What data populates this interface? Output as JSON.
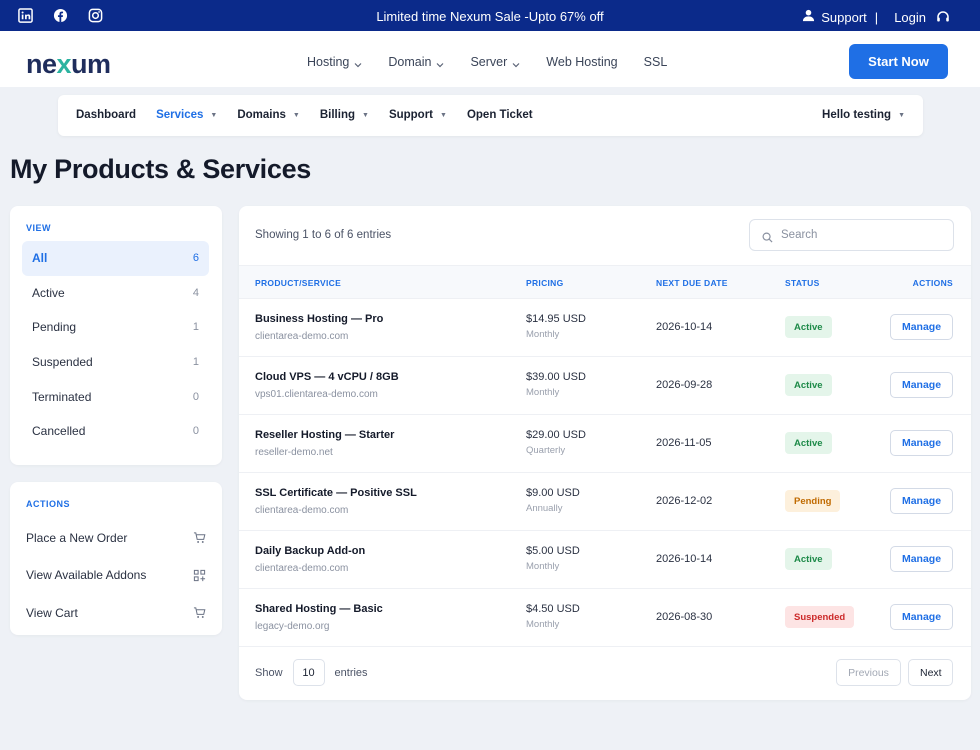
{
  "topbar": {
    "social": [
      "linkedin-icon",
      "facebook-icon",
      "instagram-icon"
    ],
    "promo": "Limited time Nexum Sale -Upto 67% off",
    "support": "Support",
    "separator": "|",
    "login": "Login"
  },
  "header": {
    "logo_pre": "ne",
    "logo_x": "x",
    "logo_post": "um",
    "nav": [
      {
        "label": "Hosting",
        "dropdown": true
      },
      {
        "label": "Domain",
        "dropdown": true
      },
      {
        "label": "Server",
        "dropdown": true
      },
      {
        "label": "Web Hosting",
        "dropdown": false
      },
      {
        "label": "SSL",
        "dropdown": false
      }
    ],
    "cta": "Start Now"
  },
  "subnav": {
    "items": [
      {
        "label": "Dashboard",
        "caret": false,
        "active": false
      },
      {
        "label": "Services",
        "caret": true,
        "active": true
      },
      {
        "label": "Domains",
        "caret": true,
        "active": false
      },
      {
        "label": "Billing",
        "caret": true,
        "active": false
      },
      {
        "label": "Support",
        "caret": true,
        "active": false
      },
      {
        "label": "Open Ticket",
        "caret": false,
        "active": false
      }
    ],
    "user": "Hello testing",
    "caret_glyph": "▼"
  },
  "page": {
    "title": "My Products & Services"
  },
  "sidebar": {
    "view_heading": "VIEW",
    "views": [
      {
        "label": "All",
        "count": "6",
        "active": true
      },
      {
        "label": "Active",
        "count": "4",
        "active": false
      },
      {
        "label": "Pending",
        "count": "1",
        "active": false
      },
      {
        "label": "Suspended",
        "count": "1",
        "active": false
      },
      {
        "label": "Terminated",
        "count": "0",
        "active": false
      },
      {
        "label": "Cancelled",
        "count": "0",
        "active": false
      }
    ],
    "actions_heading": "ACTIONS",
    "actions": [
      {
        "label": "Place a New Order",
        "icon": "cart-icon"
      },
      {
        "label": "View Available Addons",
        "icon": "addons-grid-icon"
      },
      {
        "label": "View Cart",
        "icon": "cart-icon"
      }
    ]
  },
  "table": {
    "showing": "Showing 1 to 6 of 6 entries",
    "search_placeholder": "Search",
    "headers": {
      "product": "PRODUCT/SERVICE",
      "pricing": "PRICING",
      "due": "NEXT DUE DATE",
      "status": "STATUS",
      "actions": "ACTIONS"
    },
    "rows": [
      {
        "product": "Business Hosting — Pro",
        "domain": "clientarea-demo.com",
        "price": "$14.95 USD",
        "cycle": "Monthly",
        "due": "2026-10-14",
        "status": "Active",
        "status_class": "active",
        "action": "Manage"
      },
      {
        "product": "Cloud VPS — 4 vCPU / 8GB",
        "domain": "vps01.clientarea-demo.com",
        "price": "$39.00 USD",
        "cycle": "Monthly",
        "due": "2026-09-28",
        "status": "Active",
        "status_class": "active",
        "action": "Manage"
      },
      {
        "product": "Reseller Hosting — Starter",
        "domain": "reseller-demo.net",
        "price": "$29.00 USD",
        "cycle": "Quarterly",
        "due": "2026-11-05",
        "status": "Active",
        "status_class": "active",
        "action": "Manage"
      },
      {
        "product": "SSL Certificate — Positive SSL",
        "domain": "clientarea-demo.com",
        "price": "$9.00 USD",
        "cycle": "Annually",
        "due": "2026-12-02",
        "status": "Pending",
        "status_class": "pending",
        "action": "Manage"
      },
      {
        "product": "Daily Backup Add-on",
        "domain": "clientarea-demo.com",
        "price": "$5.00 USD",
        "cycle": "Monthly",
        "due": "2026-10-14",
        "status": "Active",
        "status_class": "active",
        "action": "Manage"
      },
      {
        "product": "Shared Hosting — Basic",
        "domain": "legacy-demo.org",
        "price": "$4.50 USD",
        "cycle": "Monthly",
        "due": "2026-08-30",
        "status": "Suspended",
        "status_class": "suspended",
        "action": "Manage"
      }
    ],
    "footer": {
      "show": "Show",
      "length": "10",
      "entries": "entries",
      "prev": "Previous",
      "next": "Next"
    }
  },
  "colors": {
    "topbar": "#0b2a8a",
    "accent": "#1f6fe5",
    "logo": "#1f2d5c",
    "logo_x": "#2bb3a0"
  }
}
